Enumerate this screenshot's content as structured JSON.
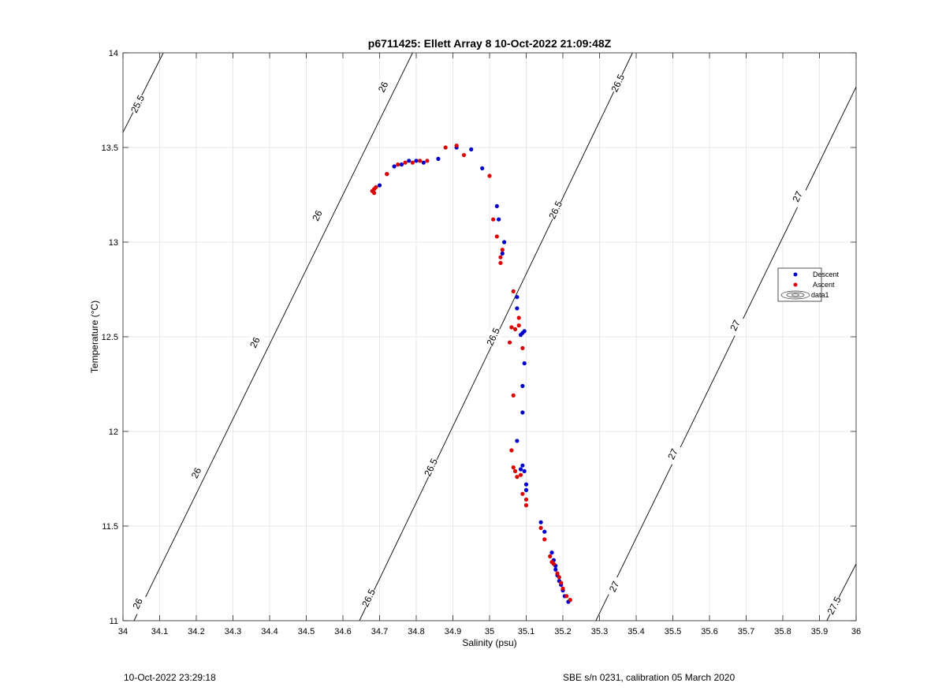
{
  "chart_data": {
    "type": "scatter",
    "title": "p6711425: Ellett Array 8 10-Oct-2022 21:09:48Z",
    "xlabel": "Salinity (psu)",
    "ylabel": "Temperature (°C)",
    "xlim": [
      34,
      36
    ],
    "ylim": [
      11,
      14
    ],
    "xticks": [
      "34",
      "34.1",
      "34.2",
      "34.3",
      "34.4",
      "34.5",
      "34.6",
      "34.7",
      "34.8",
      "34.9",
      "35",
      "35.1",
      "35.2",
      "35.3",
      "35.4",
      "35.5",
      "35.6",
      "35.7",
      "35.8",
      "35.9",
      "36"
    ],
    "yticks": [
      "11",
      "11.5",
      "12",
      "12.5",
      "13",
      "13.5",
      "14"
    ],
    "grid": true,
    "legend_position": "right",
    "legend": [
      "Descent",
      "Ascent",
      "data1"
    ],
    "series": [
      {
        "name": "Descent",
        "color": "#0000cc",
        "points": [
          [
            34.7,
            13.3
          ],
          [
            34.72,
            13.36
          ],
          [
            34.74,
            13.4
          ],
          [
            34.76,
            13.41
          ],
          [
            34.78,
            13.43
          ],
          [
            34.8,
            13.43
          ],
          [
            34.82,
            13.42
          ],
          [
            34.86,
            13.44
          ],
          [
            34.91,
            13.5
          ],
          [
            34.95,
            13.49
          ],
          [
            34.98,
            13.39
          ],
          [
            35.02,
            13.19
          ],
          [
            35.025,
            13.12
          ],
          [
            35.04,
            13.0
          ],
          [
            35.035,
            12.94
          ],
          [
            35.075,
            12.71
          ],
          [
            35.075,
            12.65
          ],
          [
            35.09,
            12.52
          ],
          [
            35.095,
            12.53
          ],
          [
            35.085,
            12.51
          ],
          [
            35.095,
            12.36
          ],
          [
            35.09,
            12.24
          ],
          [
            35.09,
            12.1
          ],
          [
            35.075,
            11.95
          ],
          [
            35.09,
            11.82
          ],
          [
            35.085,
            11.8
          ],
          [
            35.095,
            11.79
          ],
          [
            35.1,
            11.72
          ],
          [
            35.1,
            11.69
          ],
          [
            35.14,
            11.52
          ],
          [
            35.15,
            11.47
          ],
          [
            35.17,
            11.36
          ],
          [
            35.175,
            11.32
          ],
          [
            35.18,
            11.29
          ],
          [
            35.18,
            11.27
          ],
          [
            35.185,
            11.24
          ],
          [
            35.19,
            11.21
          ],
          [
            35.195,
            11.19
          ],
          [
            35.2,
            11.16
          ],
          [
            35.205,
            11.13
          ],
          [
            35.215,
            11.1
          ]
        ]
      },
      {
        "name": "Ascent",
        "color": "#dd0000",
        "points": [
          [
            34.685,
            13.26
          ],
          [
            34.685,
            13.28
          ],
          [
            34.68,
            13.27
          ],
          [
            34.69,
            13.29
          ],
          [
            34.72,
            13.36
          ],
          [
            34.75,
            13.41
          ],
          [
            34.77,
            13.42
          ],
          [
            34.79,
            13.42
          ],
          [
            34.81,
            13.43
          ],
          [
            34.83,
            13.43
          ],
          [
            34.88,
            13.5
          ],
          [
            34.91,
            13.51
          ],
          [
            34.93,
            13.46
          ],
          [
            35.0,
            13.35
          ],
          [
            35.01,
            13.12
          ],
          [
            35.02,
            13.03
          ],
          [
            35.035,
            12.96
          ],
          [
            35.03,
            12.92
          ],
          [
            35.03,
            12.89
          ],
          [
            35.065,
            12.74
          ],
          [
            35.08,
            12.6
          ],
          [
            35.08,
            12.56
          ],
          [
            35.06,
            12.55
          ],
          [
            35.07,
            12.54
          ],
          [
            35.055,
            12.47
          ],
          [
            35.09,
            12.44
          ],
          [
            35.065,
            12.19
          ],
          [
            35.06,
            11.9
          ],
          [
            35.065,
            11.81
          ],
          [
            35.07,
            11.79
          ],
          [
            35.075,
            11.76
          ],
          [
            35.085,
            11.77
          ],
          [
            35.09,
            11.67
          ],
          [
            35.1,
            11.64
          ],
          [
            35.1,
            11.61
          ],
          [
            35.14,
            11.49
          ],
          [
            35.15,
            11.43
          ],
          [
            35.165,
            11.34
          ],
          [
            35.17,
            11.31
          ],
          [
            35.175,
            11.3
          ],
          [
            35.185,
            11.25
          ],
          [
            35.19,
            11.23
          ],
          [
            35.195,
            11.2
          ],
          [
            35.2,
            11.17
          ],
          [
            35.21,
            11.13
          ],
          [
            35.22,
            11.11
          ]
        ]
      }
    ],
    "contours": [
      {
        "label": "25.5",
        "points": [
          [
            34.0,
            13.58
          ],
          [
            34.11,
            14.0
          ]
        ],
        "labels": [
          [
            34.04,
            13.73
          ]
        ]
      },
      {
        "label": "26",
        "points": [
          [
            34.03,
            11.0
          ],
          [
            34.79,
            14.0
          ]
        ],
        "labels": [
          [
            34.04,
            11.09
          ],
          [
            34.2,
            11.78
          ],
          [
            34.36,
            12.47
          ],
          [
            34.53,
            13.14
          ],
          [
            34.71,
            13.82
          ]
        ]
      },
      {
        "label": "26.5",
        "points": [
          [
            34.645,
            11.0
          ],
          [
            35.39,
            14.0
          ]
        ],
        "labels": [
          [
            34.67,
            11.12
          ],
          [
            34.84,
            11.81
          ],
          [
            35.01,
            12.5
          ],
          [
            35.18,
            13.17
          ],
          [
            35.35,
            13.84
          ]
        ]
      },
      {
        "label": "27",
        "points": [
          [
            35.29,
            11.0
          ],
          [
            36.0,
            13.82
          ]
        ],
        "labels": [
          [
            35.34,
            11.18
          ],
          [
            35.5,
            11.88
          ],
          [
            35.67,
            12.56
          ],
          [
            35.84,
            13.24
          ]
        ]
      },
      {
        "label": "27.5",
        "points": [
          [
            35.92,
            11.0
          ],
          [
            36.0,
            11.3
          ]
        ],
        "labels": [
          [
            35.94,
            11.08
          ]
        ]
      }
    ]
  },
  "footer": {
    "left": "10-Oct-2022 23:29:18",
    "right": "SBE s/n 0231, calibration 05 March 2020"
  }
}
